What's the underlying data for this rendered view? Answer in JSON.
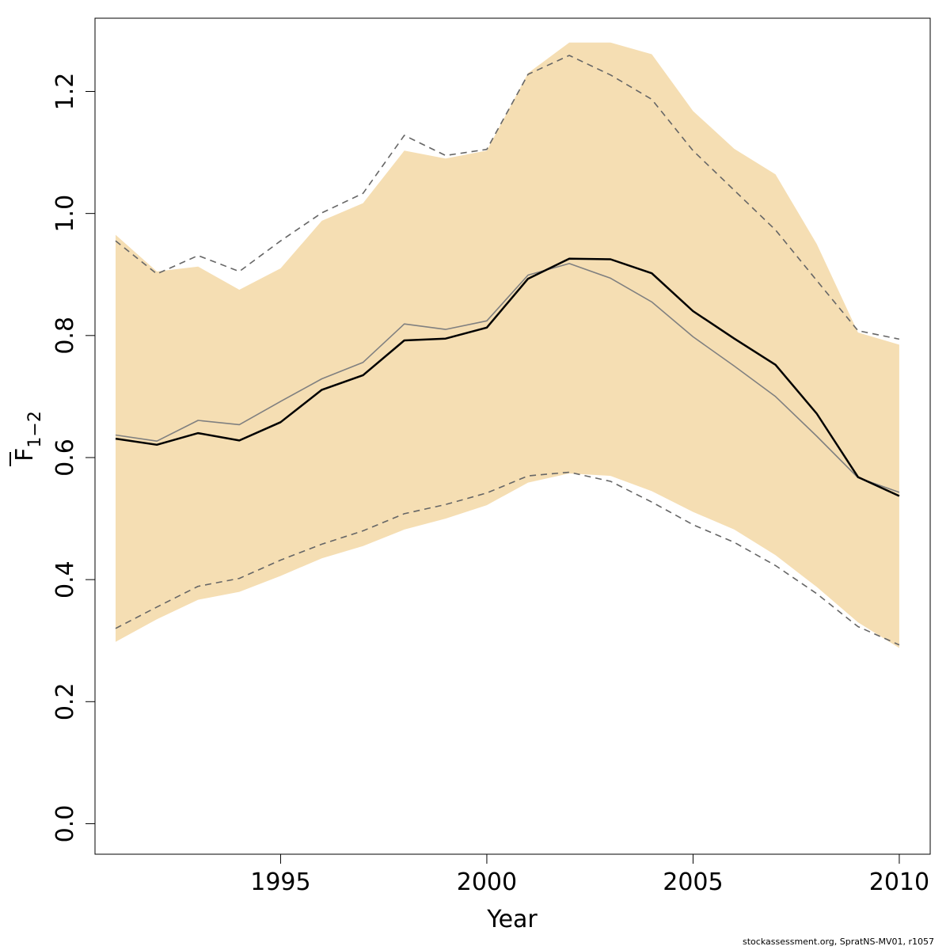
{
  "chart_data": {
    "type": "line",
    "xlabel": "Year",
    "ylabel_main": "F",
    "ylabel_sub": "1−2",
    "xlim": [
      1990.5,
      2010.75
    ],
    "ylim": [
      -0.05,
      1.32
    ],
    "x_ticks": [
      1995,
      2000,
      2005,
      2010
    ],
    "y_ticks": [
      0.0,
      0.2,
      0.4,
      0.6,
      0.8,
      1.0,
      1.2
    ],
    "y_tick_labels": [
      "0.0",
      "0.2",
      "0.4",
      "0.6",
      "0.8",
      "1.0",
      "1.2"
    ],
    "x": [
      1991,
      1992,
      1993,
      1994,
      1995,
      1996,
      1997,
      1998,
      1999,
      2000,
      2001,
      2002,
      2003,
      2004,
      2005,
      2006,
      2007,
      2008,
      2009,
      2010
    ],
    "band": {
      "color": "#f5deb3",
      "upper": [
        0.965,
        0.905,
        0.913,
        0.875,
        0.91,
        0.988,
        1.017,
        1.103,
        1.09,
        1.103,
        1.23,
        1.28,
        1.28,
        1.261,
        1.168,
        1.106,
        1.064,
        0.95,
        0.805,
        0.785
      ],
      "lower": [
        0.298,
        0.335,
        0.367,
        0.38,
        0.406,
        0.435,
        0.455,
        0.482,
        0.5,
        0.522,
        0.559,
        0.574,
        0.57,
        0.545,
        0.511,
        0.482,
        0.44,
        0.388,
        0.33,
        0.288
      ]
    },
    "series": [
      {
        "style": "thick-black",
        "color": "#000000",
        "values": [
          0.631,
          0.621,
          0.64,
          0.628,
          0.658,
          0.711,
          0.735,
          0.792,
          0.795,
          0.813,
          0.893,
          0.926,
          0.925,
          0.902,
          0.84,
          0.795,
          0.752,
          0.672,
          0.568,
          0.537
        ]
      },
      {
        "style": "thin-grey",
        "color": "#808080",
        "values": [
          0.637,
          0.627,
          0.661,
          0.654,
          0.692,
          0.729,
          0.756,
          0.819,
          0.81,
          0.824,
          0.899,
          0.918,
          0.894,
          0.855,
          0.798,
          0.75,
          0.7,
          0.635,
          0.567,
          0.543
        ]
      },
      {
        "style": "dashed-upper",
        "color": "#666666",
        "values": [
          0.955,
          0.901,
          0.931,
          0.905,
          0.955,
          1.001,
          1.033,
          1.128,
          1.095,
          1.105,
          1.228,
          1.259,
          1.227,
          1.187,
          1.103,
          1.038,
          0.973,
          0.89,
          0.808,
          0.794
        ]
      },
      {
        "style": "dashed-lower",
        "color": "#666666",
        "values": [
          0.32,
          0.355,
          0.389,
          0.402,
          0.432,
          0.458,
          0.48,
          0.508,
          0.523,
          0.542,
          0.57,
          0.576,
          0.561,
          0.527,
          0.49,
          0.461,
          0.423,
          0.377,
          0.323,
          0.293
        ]
      }
    ]
  },
  "footer": "stockassessment.org, SpratNS-MV01, r1057"
}
